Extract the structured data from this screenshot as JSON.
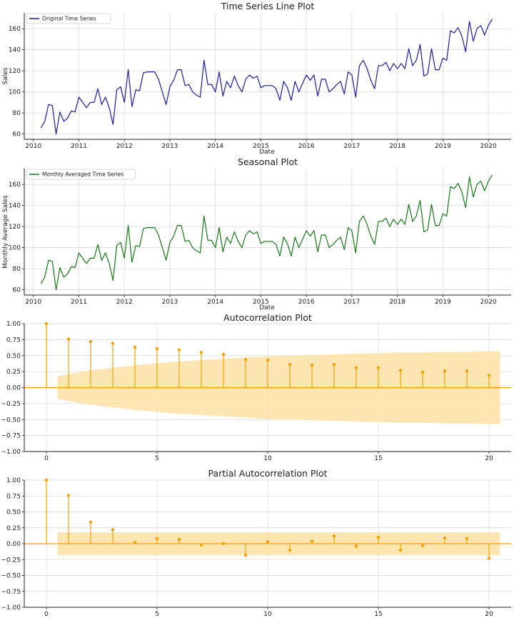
{
  "chart_data": [
    {
      "id": "ts",
      "type": "line",
      "title": "Time Series Line Plot",
      "xlabel": "Date",
      "ylabel": "Sales",
      "legend": "Original Time Series",
      "legend_position": "top-left",
      "color": "#1a1aa6",
      "xlim": [
        2009.8,
        2020.5
      ],
      "ylim": [
        55,
        175
      ],
      "xticks": [
        2010,
        2011,
        2012,
        2013,
        2014,
        2015,
        2016,
        2017,
        2018,
        2019,
        2020
      ],
      "yticks": [
        60,
        80,
        100,
        120,
        140,
        160
      ],
      "x_start": 2010.167,
      "x_step": 0.08333,
      "values": [
        66,
        72,
        88,
        87,
        60,
        81,
        72,
        75,
        82,
        81,
        95,
        90,
        85,
        90,
        90,
        103,
        88,
        95,
        85,
        69,
        102,
        105,
        90,
        121,
        86,
        102,
        101,
        118,
        119,
        119,
        119,
        112,
        100,
        88,
        105,
        111,
        121,
        121,
        106,
        107,
        100,
        97,
        95,
        130,
        107,
        107,
        100,
        119,
        96,
        110,
        104,
        115,
        106,
        100,
        112,
        116,
        113,
        115,
        104,
        106,
        106,
        106,
        103,
        92,
        110,
        104,
        92,
        110,
        100,
        108,
        116,
        111,
        116,
        96,
        112,
        112,
        100,
        103,
        107,
        110,
        98,
        119,
        116,
        95,
        125,
        130,
        122,
        111,
        103,
        125,
        125,
        128,
        120,
        127,
        122,
        127,
        122,
        141,
        125,
        130,
        145,
        115,
        117,
        141,
        121,
        121,
        132,
        130,
        158,
        156,
        161,
        153,
        138,
        167,
        148,
        160,
        163,
        154,
        163,
        169
      ]
    },
    {
      "id": "seasonal",
      "type": "line",
      "title": "Seasonal Plot",
      "xlabel": "Date",
      "ylabel": "Monthly Average Sales",
      "legend": "Monthly Averaged Time Series",
      "legend_position": "top-left",
      "color": "#137a13",
      "xlim": [
        2009.8,
        2020.5
      ],
      "ylim": [
        55,
        175
      ],
      "xticks": [
        2010,
        2011,
        2012,
        2013,
        2014,
        2015,
        2016,
        2017,
        2018,
        2019,
        2020
      ],
      "yticks": [
        60,
        80,
        100,
        120,
        140,
        160
      ],
      "x_start": 2010.167,
      "x_step": 0.08333,
      "values": [
        66,
        72,
        88,
        87,
        60,
        81,
        72,
        75,
        82,
        81,
        95,
        90,
        85,
        90,
        90,
        103,
        88,
        95,
        85,
        69,
        102,
        105,
        90,
        121,
        86,
        102,
        101,
        118,
        119,
        119,
        119,
        112,
        100,
        88,
        105,
        111,
        121,
        121,
        106,
        107,
        100,
        97,
        95,
        130,
        107,
        107,
        100,
        119,
        96,
        110,
        104,
        115,
        106,
        100,
        112,
        116,
        113,
        115,
        104,
        106,
        106,
        106,
        103,
        92,
        110,
        104,
        92,
        110,
        100,
        108,
        116,
        111,
        116,
        96,
        112,
        112,
        100,
        103,
        107,
        110,
        98,
        119,
        116,
        95,
        125,
        130,
        122,
        111,
        103,
        125,
        125,
        128,
        120,
        127,
        122,
        127,
        122,
        141,
        125,
        130,
        145,
        115,
        117,
        141,
        121,
        121,
        132,
        130,
        158,
        156,
        161,
        153,
        138,
        167,
        148,
        160,
        163,
        154,
        163,
        169
      ]
    },
    {
      "id": "acf",
      "type": "stem",
      "title": "Autocorrelation Plot",
      "color": "#f5a300",
      "band_color": "#fde2a6",
      "xlim": [
        -1,
        21
      ],
      "ylim": [
        -1.0,
        1.0
      ],
      "xticks": [
        0,
        5,
        10,
        15,
        20
      ],
      "yticks": [
        "1.00",
        "0.75",
        "0.50",
        "0.25",
        "0.00",
        "−0.25",
        "−0.50",
        "−0.75",
        "−1.00"
      ],
      "ytick_values": [
        1,
        0.75,
        0.5,
        0.25,
        0,
        -0.25,
        -0.5,
        -0.75,
        -1
      ],
      "lags": [
        0,
        1,
        2,
        3,
        4,
        5,
        6,
        7,
        8,
        9,
        10,
        11,
        12,
        13,
        14,
        15,
        16,
        17,
        18,
        19,
        20
      ],
      "values": [
        1.0,
        0.76,
        0.72,
        0.69,
        0.63,
        0.61,
        0.59,
        0.55,
        0.52,
        0.44,
        0.43,
        0.36,
        0.35,
        0.36,
        0.31,
        0.31,
        0.27,
        0.24,
        0.26,
        0.26,
        0.19
      ],
      "band_x": [
        0.5,
        1,
        2,
        3,
        4,
        5,
        6,
        7,
        8,
        9,
        10,
        11,
        12,
        13,
        14,
        15,
        16,
        17,
        18,
        19,
        20,
        20.5
      ],
      "band": [
        0.18,
        0.21,
        0.27,
        0.31,
        0.35,
        0.38,
        0.41,
        0.43,
        0.45,
        0.47,
        0.49,
        0.5,
        0.51,
        0.52,
        0.53,
        0.54,
        0.55,
        0.55,
        0.56,
        0.56,
        0.57,
        0.57
      ]
    },
    {
      "id": "pacf",
      "type": "stem",
      "title": "Partial Autocorrelation Plot",
      "color": "#f5a300",
      "band_color": "#fde2a6",
      "xlim": [
        -1,
        21
      ],
      "ylim": [
        -1.0,
        1.0
      ],
      "xticks": [
        0,
        5,
        10,
        15,
        20
      ],
      "yticks": [
        "1.00",
        "0.75",
        "0.50",
        "0.25",
        "0.00",
        "−0.25",
        "−0.50",
        "−0.75",
        "−1.00"
      ],
      "ytick_values": [
        1,
        0.75,
        0.5,
        0.25,
        0,
        -0.25,
        -0.5,
        -0.75,
        -1
      ],
      "lags": [
        0,
        1,
        2,
        3,
        4,
        5,
        6,
        7,
        8,
        9,
        10,
        11,
        12,
        13,
        14,
        15,
        16,
        17,
        18,
        19,
        20
      ],
      "values": [
        1.0,
        0.76,
        0.34,
        0.22,
        0.02,
        0.08,
        0.07,
        -0.02,
        0.0,
        -0.18,
        0.03,
        -0.1,
        0.04,
        0.12,
        -0.04,
        0.1,
        -0.1,
        -0.03,
        0.09,
        0.08,
        -0.23
      ],
      "band_x": [
        0.5,
        20.5
      ],
      "band": [
        0.18,
        0.18
      ]
    }
  ]
}
